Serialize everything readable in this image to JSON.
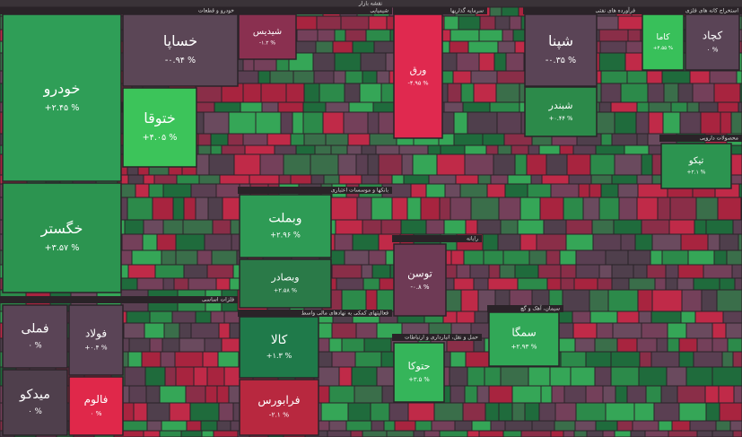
{
  "title": "نقشه بازار",
  "sectors": [
    {
      "name": "خودرو و قطعات",
      "tiles": [
        {
          "symbol": "خودرو",
          "change": "+۲.۴۵ %"
        },
        {
          "symbol": "خگستر",
          "change": "+۳.۵۷ %"
        },
        {
          "symbol": "خساپا",
          "change": "-۰.۹۴ %"
        },
        {
          "symbol": "ختوقا",
          "change": "+۴.۰۵ %"
        }
      ]
    },
    {
      "name": "فلزات اساسی",
      "tiles": [
        {
          "symbol": "فملی",
          "change": "۰ %"
        },
        {
          "symbol": "میدکو",
          "change": "۰ %"
        },
        {
          "symbol": "فولاد",
          "change": "+۰.۴ %"
        },
        {
          "symbol": "فالوم",
          "change": "۰ %"
        }
      ]
    },
    {
      "name": "شیمیایی",
      "tiles": [
        {
          "symbol": "شیدیس",
          "change": "-۱.۲ %"
        }
      ]
    },
    {
      "name": "بانکها و موسسات اعتباری",
      "tiles": [
        {
          "symbol": "وبملت",
          "change": "+۲.۹۶ %"
        },
        {
          "symbol": "وبصادر",
          "change": "+۲.۵۸ %"
        }
      ]
    },
    {
      "name": "فعالیتهای کمکی به نهادهای مالی واسط",
      "tiles": [
        {
          "symbol": "کالا",
          "change": "+۱.۳ %"
        },
        {
          "symbol": "فرابورس",
          "change": "-۲.۱ %"
        }
      ]
    },
    {
      "name": "سرمایه گذاریها",
      "tiles": [
        {
          "symbol": "ورق",
          "change": "-۴.۹۵ %"
        }
      ]
    },
    {
      "name": "فرآورده های نفتی",
      "tiles": [
        {
          "symbol": "شپنا",
          "change": "-۰.۳۵ %"
        },
        {
          "symbol": "شبندر",
          "change": "+۰.۴۴ %"
        }
      ]
    },
    {
      "name": "استخراج کانه های فلزی",
      "tiles": [
        {
          "symbol": "کاما",
          "change": "+۴.۵۵ %"
        },
        {
          "symbol": "کچاد",
          "change": "۰ %"
        }
      ]
    },
    {
      "name": "رایانه",
      "tiles": [
        {
          "symbol": "توسن",
          "change": "-۰.۸ %"
        }
      ]
    },
    {
      "name": "حمل و نقل، انبارداری و ارتباطات",
      "tiles": [
        {
          "symbol": "حتوکا",
          "change": "+۳.۵ %"
        }
      ]
    },
    {
      "name": "سیمان، آهک و گچ",
      "tiles": [
        {
          "symbol": "سمگا",
          "change": "+۲.۹۳ %"
        }
      ]
    },
    {
      "name": "محصولات دارویی",
      "tiles": [
        {
          "symbol": "تیکو",
          "change": "+۲.۱ %"
        }
      ]
    }
  ]
}
